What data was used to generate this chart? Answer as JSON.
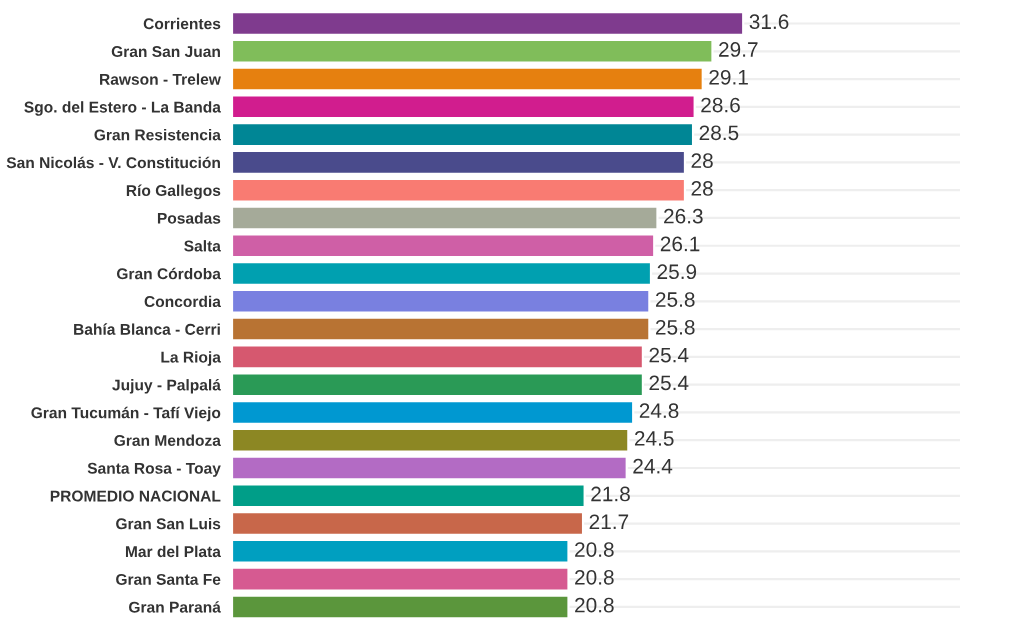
{
  "chart_data": {
    "type": "bar",
    "orientation": "horizontal",
    "data_labels": true,
    "grid": "y",
    "xlim": [
      0,
      45
    ],
    "categories": [
      "Corrientes",
      "Gran San Juan",
      "Rawson - Trelew",
      "Sgo. del Estero - La Banda",
      "Gran Resistencia",
      "San Nicolás - V. Constitución",
      "Río Gallegos",
      "Posadas",
      "Salta",
      "Gran Córdoba",
      "Concordia",
      "Bahía Blanca - Cerri",
      "La Rioja",
      "Jujuy - Palpalá",
      "Gran Tucumán - Tafí Viejo",
      "Gran Mendoza",
      "Santa Rosa - Toay",
      "PROMEDIO NACIONAL",
      "Gran San Luis",
      "Mar del Plata",
      "Gran Santa Fe",
      "Gran Paraná"
    ],
    "values": [
      31.6,
      29.7,
      29.1,
      28.6,
      28.5,
      28,
      28,
      26.3,
      26.1,
      25.9,
      25.8,
      25.8,
      25.4,
      25.4,
      24.8,
      24.5,
      24.4,
      21.8,
      21.7,
      20.8,
      20.8,
      20.8
    ],
    "colors": [
      "#7f3b8e",
      "#80bd5a",
      "#e6800f",
      "#d11d8e",
      "#008695",
      "#4a4b8c",
      "#f97b72",
      "#a5aa99",
      "#cf5fa6",
      "#00a0b0",
      "#7980e0",
      "#b87333",
      "#d6586f",
      "#2a9a56",
      "#0098d1",
      "#8c8723",
      "#b36bc4",
      "#009e88",
      "#c8674a",
      "#009fc0",
      "#d65a91",
      "#5b963c"
    ]
  }
}
